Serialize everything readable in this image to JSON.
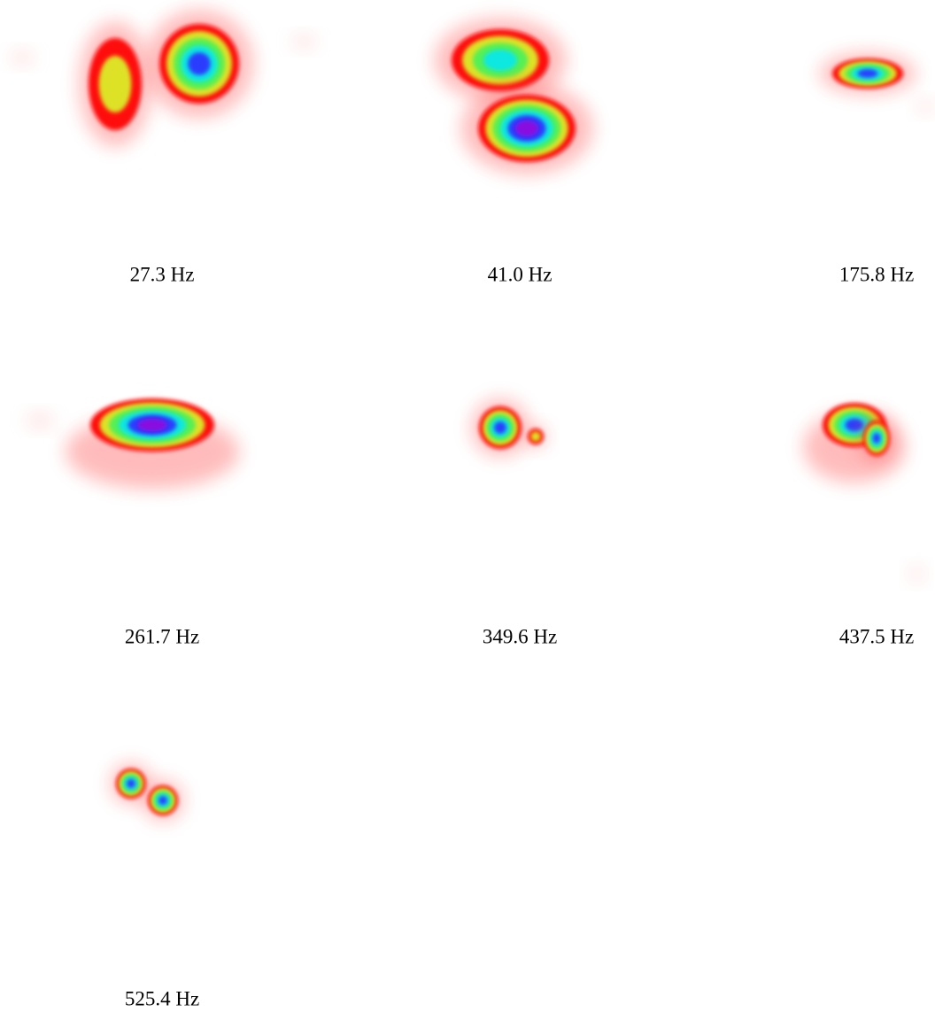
{
  "panels": [
    {
      "caption": "27.3 Hz"
    },
    {
      "caption": "41.0 Hz"
    },
    {
      "caption": "175.8 Hz"
    },
    {
      "caption": "261.7 Hz"
    },
    {
      "caption": "349.6 Hz"
    },
    {
      "caption": "437.5 Hz"
    },
    {
      "caption": "525.4 Hz"
    }
  ]
}
